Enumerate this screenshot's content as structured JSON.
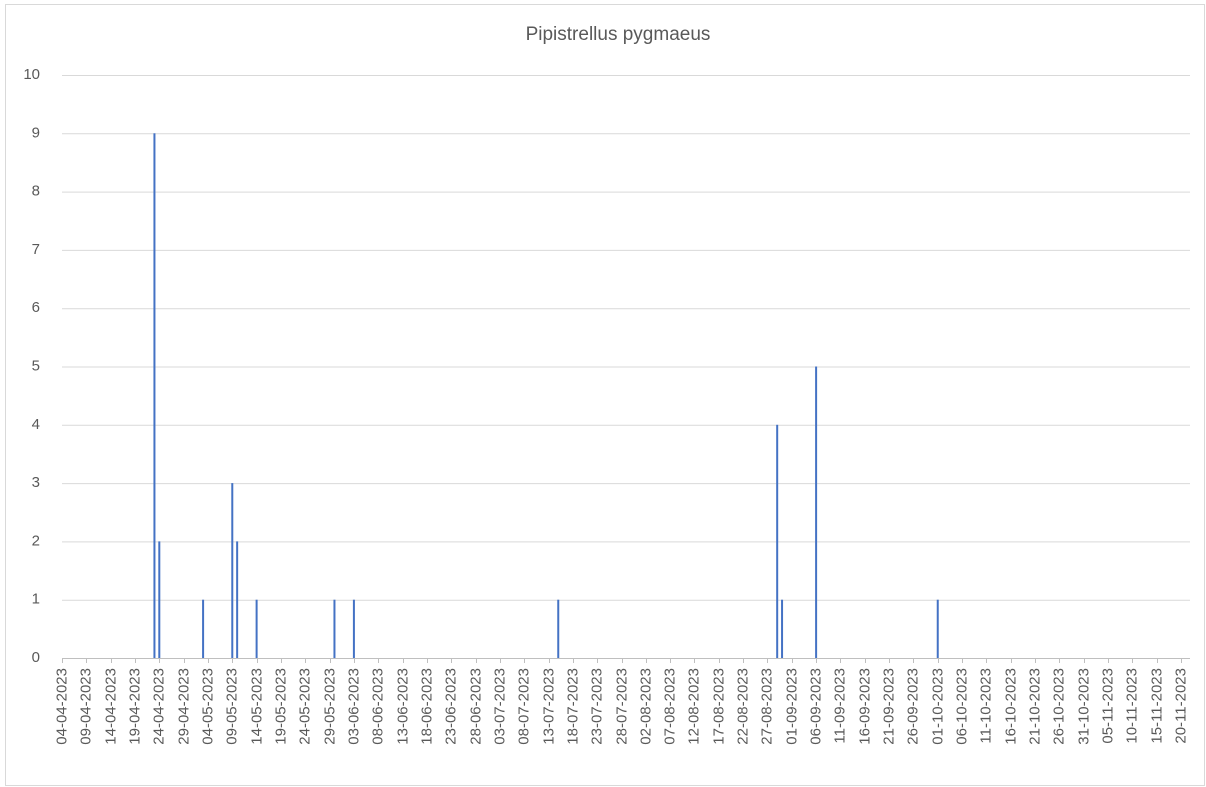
{
  "chart_data": {
    "type": "bar",
    "title": "Pipistrellus pygmaeus",
    "x": [
      "23-04-2023",
      "24-04-2023",
      "03-05-2023",
      "09-05-2023",
      "10-05-2023",
      "14-05-2023",
      "30-05-2023",
      "03-06-2023",
      "15-07-2023",
      "29-08-2023",
      "30-08-2023",
      "06-09-2023",
      "01-10-2023"
    ],
    "values": [
      9,
      2,
      1,
      3,
      2,
      1,
      1,
      1,
      1,
      4,
      1,
      5,
      1
    ],
    "color": "#4472c4",
    "xlim": [
      "04-04-2023",
      "20-11-2023"
    ],
    "xticks": [
      "04-04-2023",
      "09-04-2023",
      "14-04-2023",
      "19-04-2023",
      "24-04-2023",
      "29-04-2023",
      "04-05-2023",
      "09-05-2023",
      "14-05-2023",
      "19-05-2023",
      "24-05-2023",
      "29-05-2023",
      "03-06-2023",
      "08-06-2023",
      "13-06-2023",
      "18-06-2023",
      "23-06-2023",
      "28-06-2023",
      "03-07-2023",
      "08-07-2023",
      "13-07-2023",
      "18-07-2023",
      "23-07-2023",
      "28-07-2023",
      "02-08-2023",
      "07-08-2023",
      "12-08-2023",
      "17-08-2023",
      "22-08-2023",
      "27-08-2023",
      "01-09-2023",
      "06-09-2023",
      "11-09-2023",
      "16-09-2023",
      "21-09-2023",
      "26-09-2023",
      "01-10-2023",
      "06-10-2023",
      "11-10-2023",
      "16-10-2023",
      "21-10-2023",
      "26-10-2023",
      "31-10-2023",
      "05-11-2023",
      "10-11-2023",
      "15-11-2023",
      "20-11-2023"
    ],
    "ylim": [
      0,
      10
    ],
    "yticks": [
      0,
      1,
      2,
      3,
      4,
      5,
      6,
      7,
      8,
      9,
      10
    ],
    "grid": true
  }
}
